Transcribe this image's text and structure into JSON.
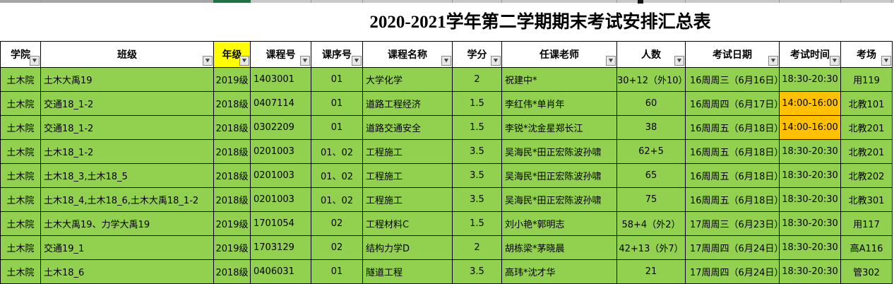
{
  "title": "2020-2021学年第二学期期末考试安排汇总表",
  "colors": {
    "row_green": "#92D050",
    "highlight_orange": "#FFC000",
    "grade_header_yellow": "#FFFF00",
    "selected_column_green": "#217346"
  },
  "table": {
    "columns": [
      {
        "key": "college",
        "label": "学院"
      },
      {
        "key": "class",
        "label": "班级"
      },
      {
        "key": "grade",
        "label": "年级"
      },
      {
        "key": "course-id",
        "label": "课程号"
      },
      {
        "key": "course-seq",
        "label": "课序号"
      },
      {
        "key": "course-name",
        "label": "课程名称"
      },
      {
        "key": "credits",
        "label": "学分"
      },
      {
        "key": "teacher",
        "label": "任课老师"
      },
      {
        "key": "count",
        "label": "人数"
      },
      {
        "key": "exam-date",
        "label": "考试日期"
      },
      {
        "key": "exam-time",
        "label": "考试时间"
      },
      {
        "key": "room",
        "label": "考场"
      }
    ],
    "rows": [
      {
        "cells": [
          "土木院",
          "土木大禹19",
          "2019级",
          "1403001",
          "01",
          "大学化学",
          "2",
          "祝建中*",
          "30+12（外10）",
          "16周周三（6月16日）",
          "18:30-20:30",
          "用119"
        ],
        "highlight": []
      },
      {
        "cells": [
          "土木院",
          "交通18_1-2",
          "2018级",
          "0407114",
          "01",
          "道路工程经济",
          "1.5",
          "李红伟*单肖年",
          "60",
          "16周周四（6月17日）",
          "14:00-16:00",
          "北教101"
        ],
        "highlight": [
          10
        ]
      },
      {
        "cells": [
          "土木院",
          "交通18_1-2",
          "2018级",
          "0302209",
          "01",
          "道路交通安全",
          "1.5",
          "李锐*沈金星郑长江",
          "38",
          "16周周五（6月18日）",
          "14:00-16:00",
          "北教201"
        ],
        "highlight": [
          10
        ]
      },
      {
        "cells": [
          "土木院",
          "土木18_1-2",
          "2018级",
          "0201003",
          "01、02",
          "工程施工",
          "3.5",
          "吴海民*田正宏陈波孙啸",
          "62+5",
          "16周周五（6月18日）",
          "18:30-20:30",
          "北教201"
        ],
        "highlight": []
      },
      {
        "cells": [
          "土木院",
          "土木18_3,土木18_5",
          "2018级",
          "0201003",
          "01、02",
          "工程施工",
          "3.5",
          "吴海民*田正宏陈波孙啸",
          "65",
          "16周周五（6月18日）",
          "18:30-20:30",
          "北教202"
        ],
        "highlight": []
      },
      {
        "cells": [
          "土木院",
          "土木18_4,土木18_6,土木大禹18_1-2",
          "2018级",
          "0201003",
          "01、02",
          "工程施工",
          "3.5",
          "吴海民*田正宏陈波孙啸",
          "75",
          "16周周五（6月18日）",
          "18:30-20:30",
          "北教301"
        ],
        "highlight": []
      },
      {
        "cells": [
          "土木院",
          "土木大禹19、力学大禹19",
          "2019级",
          "1701054",
          "02",
          "工程材料C",
          "1.5",
          "刘小艳*郭明志",
          "58+4（外2）",
          "17周周三（6月23日）",
          "18:30-20:30",
          "用117"
        ],
        "highlight": []
      },
      {
        "cells": [
          "土木院",
          "交通19_1",
          "2019级",
          "1703129",
          "02",
          "结构力学D",
          "2",
          "胡栋梁*茅晓晨",
          "42+13（外7）",
          "17周周四（6月24日）",
          "18:30-20:30",
          "高A116"
        ],
        "highlight": []
      },
      {
        "cells": [
          "土木院",
          "土木18_6",
          "2018级",
          "0406031",
          "01",
          "隧道工程",
          "3.5",
          "高玮*沈才华",
          "21",
          "17周周四（6月24日）",
          "18:30-20:30",
          "管302"
        ],
        "highlight": []
      }
    ]
  }
}
